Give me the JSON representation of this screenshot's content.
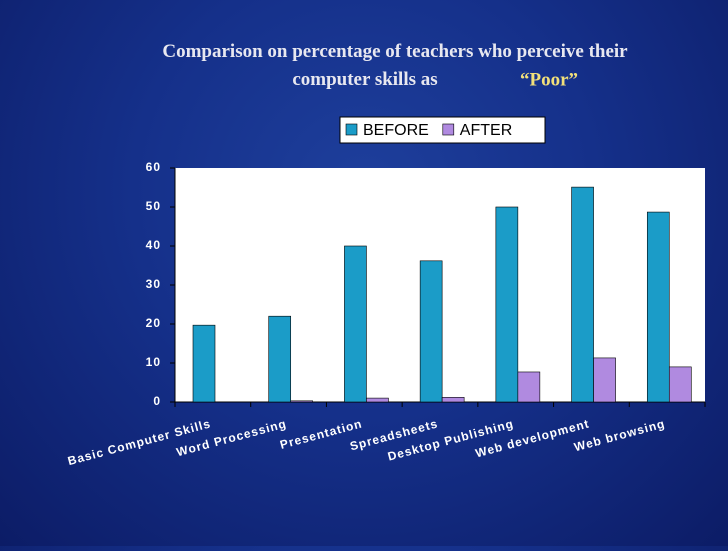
{
  "chart_data": {
    "type": "bar",
    "title": "Comparison on percentage of teachers who perceive their computer skills as",
    "title_emphasis": "“Poor”",
    "categories": [
      "Basic Computer Skills",
      "Word Processing",
      "Presentation",
      "Spreadsheets",
      "Desktop Publishing",
      "Web development",
      "Web browsing"
    ],
    "series": [
      {
        "name": "BEFORE",
        "color": "#1b9cc8",
        "values": [
          19.7,
          22,
          40,
          36.2,
          50,
          55.1,
          48.7
        ]
      },
      {
        "name": "AFTER",
        "color": "#b08ae0",
        "values": [
          0,
          0.3,
          1,
          1.2,
          7.7,
          11.3,
          9
        ]
      }
    ],
    "ylim": [
      0,
      60
    ],
    "yticks": [
      0,
      10,
      20,
      30,
      40,
      50,
      60
    ],
    "grid": false,
    "legend": "top"
  }
}
